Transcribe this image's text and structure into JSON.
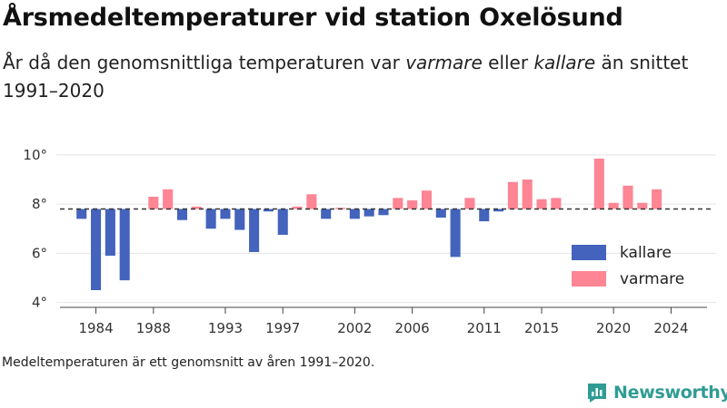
{
  "title": "Årsmedeltemperaturer vid station Oxelösund",
  "subtitle_parts": {
    "p1": "År då den genomsnittliga temperaturen var ",
    "warm": "varmare",
    "p2": " eller ",
    "cold": "kallare",
    "p3": " än snittet 1991–2020"
  },
  "footnote": "Medeltemperaturen är ett genomsnitt av åren 1991–2020.",
  "brand": "Newsworthy",
  "colors": {
    "colder": "#4363bd",
    "warmer": "#fd8594",
    "brand": "#2f9c94"
  },
  "chart_data": {
    "type": "bar",
    "baseline": 7.8,
    "ylim": [
      3.8,
      10.4
    ],
    "yticks": [
      4,
      6,
      8,
      10
    ],
    "ytick_labels": [
      "4°",
      "6°",
      "8°",
      "10°"
    ],
    "xlim": [
      1981.5,
      2026.5
    ],
    "xticks": [
      1984,
      1988,
      1993,
      1997,
      2002,
      2006,
      2011,
      2015,
      2020,
      2024
    ],
    "legend": {
      "position": "bottom-right",
      "entries": [
        {
          "key": "colder",
          "label": "kallare"
        },
        {
          "key": "warmer",
          "label": "varmare"
        }
      ]
    },
    "x": [
      1983,
      1984,
      1985,
      1986,
      1987,
      1988,
      1989,
      1990,
      1991,
      1992,
      1993,
      1994,
      1995,
      1996,
      1997,
      1998,
      1999,
      2000,
      2001,
      2002,
      2003,
      2004,
      2005,
      2006,
      2007,
      2008,
      2009,
      2010,
      2011,
      2012,
      2013,
      2014,
      2015,
      2016,
      2017,
      2018,
      2019,
      2020,
      2021,
      2022,
      2023,
      2024
    ],
    "values": [
      7.4,
      4.5,
      5.9,
      4.9,
      null,
      8.3,
      8.6,
      7.35,
      7.9,
      7.0,
      7.4,
      6.95,
      6.05,
      7.7,
      6.75,
      7.9,
      8.4,
      7.4,
      7.85,
      7.4,
      7.5,
      7.55,
      8.25,
      8.15,
      8.55,
      7.45,
      5.85,
      8.25,
      7.3,
      7.7,
      8.9,
      9.0,
      8.2,
      8.25,
      null,
      null,
      9.85,
      8.05,
      8.75,
      8.05,
      8.6,
      null
    ]
  }
}
